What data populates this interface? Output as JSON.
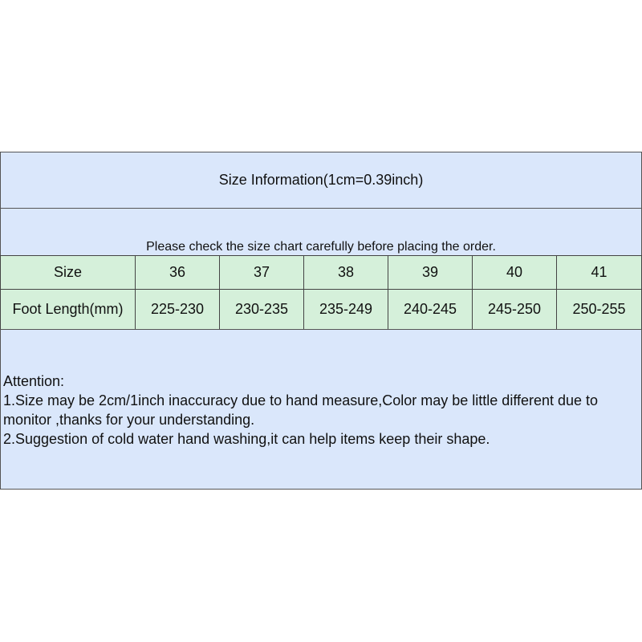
{
  "title": "Size Information(1cm=0.39inch)",
  "note": "Please check the size chart carefully before placing the order.",
  "table": {
    "rows": [
      {
        "label": "Size",
        "values": [
          "36",
          "37",
          "38",
          "39",
          "40",
          "41"
        ]
      },
      {
        "label": "Foot Length(mm)",
        "values": [
          "225-230",
          "230-235",
          "235-249",
          "240-245",
          "245-250",
          "250-255"
        ]
      }
    ]
  },
  "attention": {
    "heading": "Attention:",
    "items": [
      "1.Size may be 2cm/1inch inaccuracy due to hand measure,Color may be little different due to monitor ,thanks for your understanding.",
      "2.Suggestion of cold water hand washing,it can help items keep their shape."
    ]
  },
  "colors": {
    "header_bg": "#dae7fb",
    "table_bg": "#d5f0da"
  }
}
